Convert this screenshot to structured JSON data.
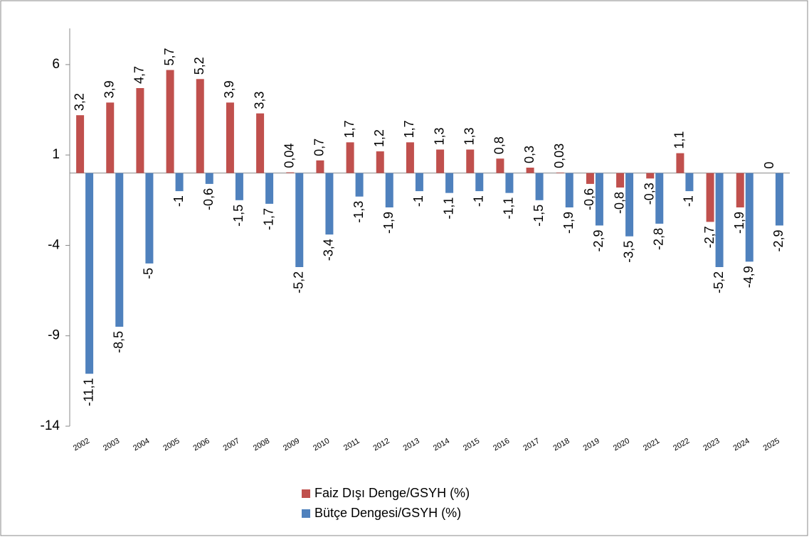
{
  "chart_data": {
    "type": "bar",
    "categories": [
      "2002",
      "2003",
      "2004",
      "2005",
      "2006",
      "2007",
      "2008",
      "2009",
      "2010",
      "2011",
      "2012",
      "2013",
      "2014",
      "2015",
      "2016",
      "2017",
      "2018",
      "2019",
      "2020",
      "2021",
      "2022",
      "2023",
      "2024",
      "2025"
    ],
    "series": [
      {
        "name": "Faiz Dışı Denge/GSYH (%)",
        "color": "#c0504d",
        "values": [
          3.2,
          3.9,
          4.7,
          5.7,
          5.2,
          3.9,
          3.3,
          0.04,
          0.7,
          1.7,
          1.2,
          1.7,
          1.3,
          1.3,
          0.8,
          0.3,
          0.03,
          -0.6,
          -0.8,
          -0.3,
          1.1,
          -2.7,
          -1.9,
          0
        ],
        "value_labels": [
          "3,2",
          "3,9",
          "4,7",
          "5,7",
          "5,2",
          "3,9",
          "3,3",
          "0,04",
          "0,7",
          "1,7",
          "1,2",
          "1,7",
          "1,3",
          "1,3",
          "0,8",
          "0,3",
          "0,03",
          "-0,6",
          "-0,8",
          "-0,3",
          "1,1",
          "-2,7",
          "-1,9",
          "0"
        ]
      },
      {
        "name": "Bütçe Dengesi/GSYH (%)",
        "color": "#4f81bd",
        "values": [
          -11.1,
          -8.5,
          -5,
          -1,
          -0.6,
          -1.5,
          -1.7,
          -5.2,
          -3.4,
          -1.3,
          -1.9,
          -1,
          -1.1,
          -1,
          -1.1,
          -1.5,
          -1.9,
          -2.9,
          -3.5,
          -2.8,
          -1,
          -5.2,
          -4.9,
          -2.9
        ],
        "value_labels": [
          "-11,1",
          "-8,5",
          "-5",
          "-1",
          "-0,6",
          "-1,5",
          "-1,7",
          "-5,2",
          "-3,4",
          "-1,3",
          "-1,9",
          "-1",
          "-1,1",
          "-1",
          "-1,1",
          "-1,5",
          "-1,9",
          "-2,9",
          "-3,5",
          "-2,8",
          "-1",
          "-5,2",
          "-4,9",
          "-2,9"
        ]
      }
    ],
    "ylim": [
      -14,
      8
    ],
    "yticks": [
      6,
      1,
      -4,
      -9,
      -14
    ],
    "legend": "bottom"
  }
}
